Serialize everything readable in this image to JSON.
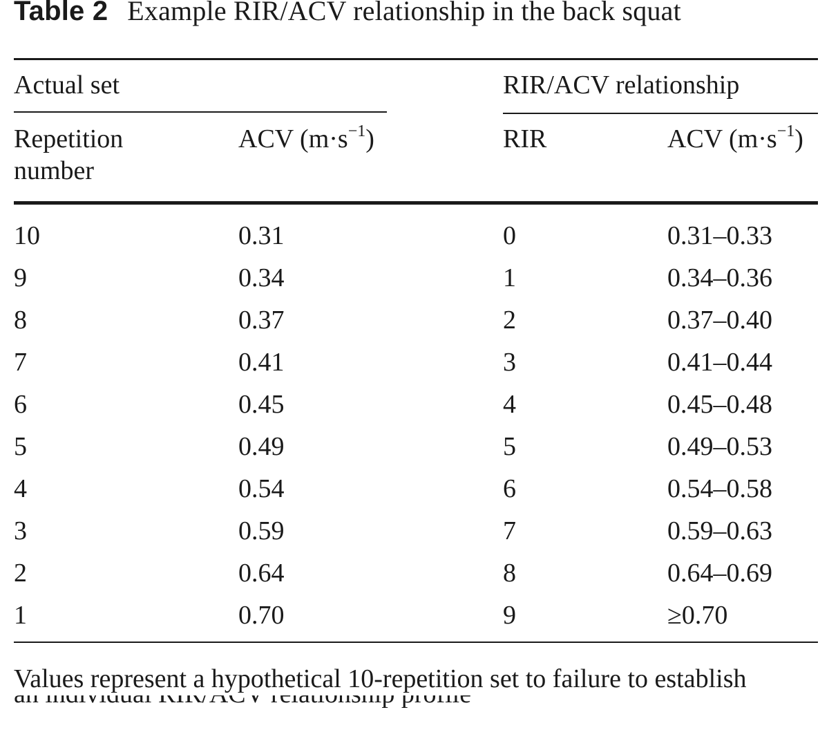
{
  "caption": {
    "label": "Table 2",
    "title": "Example RIR/ACV relationship in the back squat"
  },
  "headers": {
    "group_actual": "Actual set",
    "group_relationship": "RIR/ACV relationship",
    "col_rep_line1": "Repetition",
    "col_rep_line2": "number",
    "col_acv_actual": "ACV (m·s",
    "col_acv_actual_sup": "−1",
    "col_acv_actual_close": ")",
    "col_rir": "RIR",
    "col_acv_rel": "ACV (m·s",
    "col_acv_rel_sup": "−1",
    "col_acv_rel_close": ")"
  },
  "rows": [
    {
      "rep": "10",
      "acv": "0.31",
      "rir": "0",
      "range": "0.31–0.33"
    },
    {
      "rep": "9",
      "acv": "0.34",
      "rir": "1",
      "range": "0.34–0.36"
    },
    {
      "rep": "8",
      "acv": "0.37",
      "rir": "2",
      "range": "0.37–0.40"
    },
    {
      "rep": "7",
      "acv": "0.41",
      "rir": "3",
      "range": "0.41–0.44"
    },
    {
      "rep": "6",
      "acv": "0.45",
      "rir": "4",
      "range": "0.45–0.48"
    },
    {
      "rep": "5",
      "acv": "0.49",
      "rir": "5",
      "range": "0.49–0.53"
    },
    {
      "rep": "4",
      "acv": "0.54",
      "rir": "6",
      "range": "0.54–0.58"
    },
    {
      "rep": "3",
      "acv": "0.59",
      "rir": "7",
      "range": "0.59–0.63"
    },
    {
      "rep": "2",
      "acv": "0.64",
      "rir": "8",
      "range": "0.64–0.69"
    },
    {
      "rep": "1",
      "acv": "0.70",
      "rir": "9",
      "range": "≥0.70"
    }
  ],
  "footnote": {
    "line1": "Values represent a hypothetical 10-repetition set to failure to establish",
    "line2": "an individual RIR/ACV relationship profile"
  }
}
